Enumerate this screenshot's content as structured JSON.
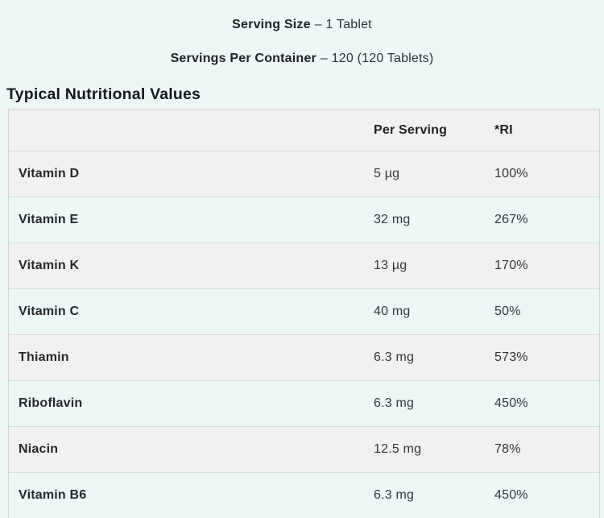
{
  "page": {
    "background_color": "#eef7f6",
    "row_stripe_gray": "#f1f1f1",
    "row_stripe_mint": "#edf7f5",
    "border_color": "#d4d6d7",
    "text_color": "#26282b"
  },
  "serving_info": {
    "serving_size_label": "Serving Size",
    "serving_size_value": "– 1 Tablet",
    "servings_per_container_label": "Servings Per Container",
    "servings_per_container_value": "– 120 (120 Tablets)"
  },
  "section_title": "Typical Nutritional Values",
  "nutrition_table": {
    "columns": {
      "name": "",
      "per_serving": "Per Serving",
      "ri": "*RI"
    },
    "rows": [
      {
        "name": "Vitamin D",
        "per_serving": "5 µg",
        "ri": "100%"
      },
      {
        "name": "Vitamin E",
        "per_serving": "32 mg",
        "ri": "267%"
      },
      {
        "name": "Vitamin K",
        "per_serving": "13 µg",
        "ri": "170%"
      },
      {
        "name": "Vitamin C",
        "per_serving": "40 mg",
        "ri": "50%"
      },
      {
        "name": "Thiamin",
        "per_serving": "6.3 mg",
        "ri": "573%"
      },
      {
        "name": "Riboflavin",
        "per_serving": "6.3 mg",
        "ri": "450%"
      },
      {
        "name": "Niacin",
        "per_serving": "12.5 mg",
        "ri": "78%"
      },
      {
        "name": "Vitamin B6",
        "per_serving": "6.3 mg",
        "ri": "450%"
      }
    ]
  }
}
